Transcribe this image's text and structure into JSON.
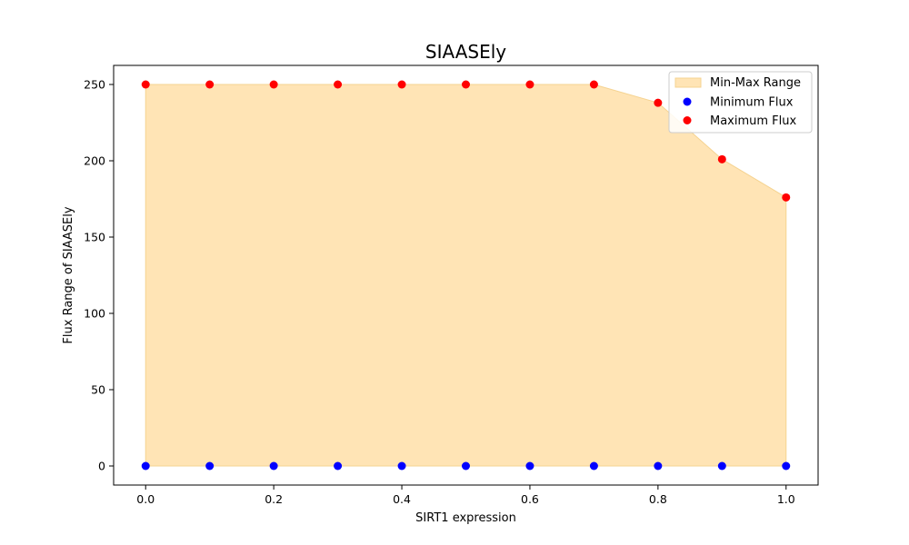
{
  "chart_data": {
    "type": "scatter",
    "title": "SIAASEly",
    "xlabel": "SIRT1 expression",
    "ylabel": "Flux Range of SIAASEly",
    "xlim": [
      -0.05,
      1.05
    ],
    "ylim": [
      -12.5,
      262.5
    ],
    "x_ticks": [
      0.0,
      0.2,
      0.4,
      0.6,
      0.8,
      1.0
    ],
    "x_tick_labels": [
      "0.0",
      "0.2",
      "0.4",
      "0.6",
      "0.8",
      "1.0"
    ],
    "y_ticks": [
      0,
      50,
      100,
      150,
      200,
      250
    ],
    "y_tick_labels": [
      "0",
      "50",
      "100",
      "150",
      "200",
      "250"
    ],
    "grid": false,
    "legend_position": "top-right",
    "x": [
      0.0,
      0.1,
      0.2,
      0.3,
      0.4,
      0.5,
      0.6,
      0.7,
      0.8,
      0.9,
      1.0
    ],
    "fill": {
      "name": "Min-Max Range",
      "color": "#ffe4b5",
      "edge_color": "#f5d391",
      "lower": [
        0,
        0,
        0,
        0,
        0,
        0,
        0,
        0,
        0,
        0,
        0
      ],
      "upper": [
        250,
        250,
        250,
        250,
        250,
        250,
        250,
        250,
        238,
        201,
        176
      ]
    },
    "series": [
      {
        "name": "Minimum Flux",
        "color": "#0000ff",
        "values": [
          0,
          0,
          0,
          0,
          0,
          0,
          0,
          0,
          0,
          0,
          0
        ]
      },
      {
        "name": "Maximum Flux",
        "color": "#ff0000",
        "values": [
          250,
          250,
          250,
          250,
          250,
          250,
          250,
          250,
          238,
          201,
          176
        ]
      }
    ]
  }
}
